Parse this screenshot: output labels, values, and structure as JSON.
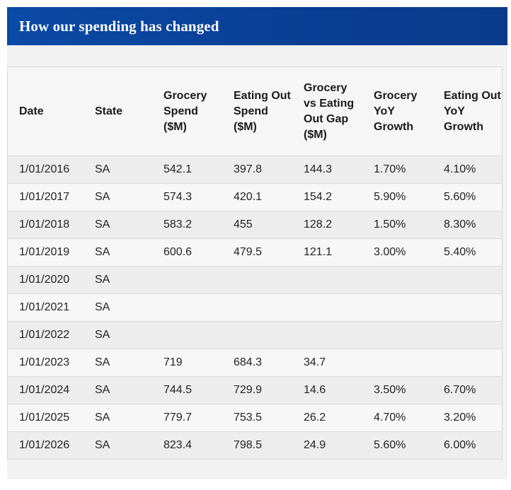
{
  "header": {
    "title": "How our spending has changed"
  },
  "table": {
    "columns": [
      "Date",
      "State",
      "Grocery Spend ($M)",
      "Eating Out Spend ($M)",
      "Grocery vs Eating Out Gap ($M)",
      "Grocery YoY Growth",
      "Eating Out YoY Growth"
    ],
    "rows": [
      [
        "1/01/2016",
        "SA",
        "542.1",
        "397.8",
        "144.3",
        "1.70%",
        "4.10%"
      ],
      [
        "1/01/2017",
        "SA",
        "574.3",
        "420.1",
        "154.2",
        "5.90%",
        "5.60%"
      ],
      [
        "1/01/2018",
        "SA",
        "583.2",
        "455",
        "128.2",
        "1.50%",
        "8.30%"
      ],
      [
        "1/01/2019",
        "SA",
        "600.6",
        "479.5",
        "121.1",
        "3.00%",
        "5.40%"
      ],
      [
        "1/01/2020",
        "SA",
        "",
        "",
        "",
        "",
        ""
      ],
      [
        "1/01/2021",
        "SA",
        "",
        "",
        "",
        "",
        ""
      ],
      [
        "1/01/2022",
        "SA",
        "",
        "",
        "",
        "",
        ""
      ],
      [
        "1/01/2023",
        "SA",
        "719",
        "684.3",
        "34.7",
        "",
        ""
      ],
      [
        "1/01/2024",
        "SA",
        "744.5",
        "729.9",
        "14.6",
        "3.50%",
        "6.70%"
      ],
      [
        "1/01/2025",
        "SA",
        "779.7",
        "753.5",
        "26.2",
        "4.70%",
        "3.20%"
      ],
      [
        "1/01/2026",
        "SA",
        "823.4",
        "798.5",
        "24.9",
        "5.60%",
        "6.00%"
      ]
    ]
  }
}
